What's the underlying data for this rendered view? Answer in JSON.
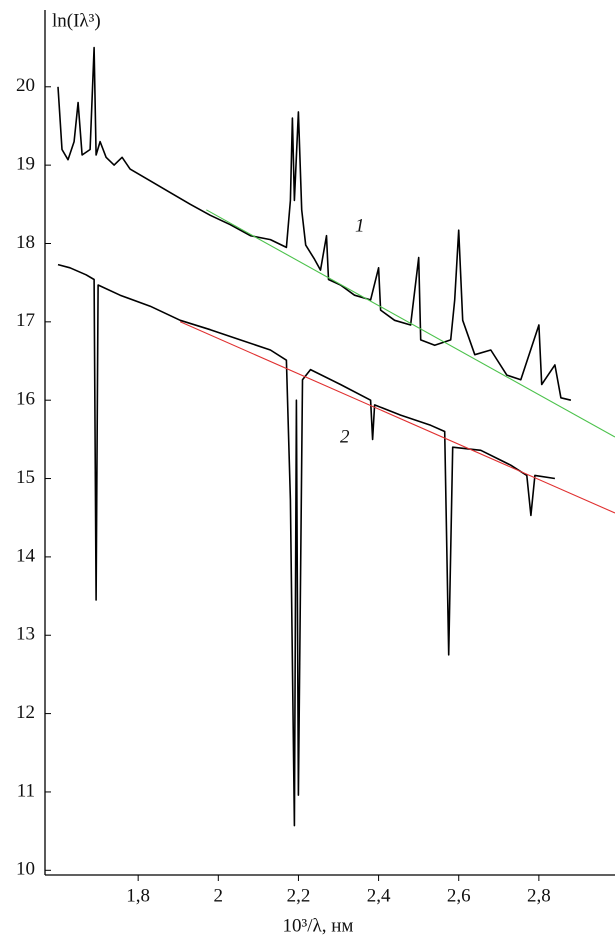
{
  "chart_data": {
    "type": "line",
    "y_label": "ln(Iλ³)",
    "x_label": "10³/λ, нм",
    "annotations": [
      "1",
      "2"
    ],
    "xlim": [
      1.5675,
      2.99
    ],
    "ylim": [
      9.94,
      20.98
    ],
    "xticks": [
      {
        "value": 1.8,
        "label": "1,8"
      },
      2,
      {
        "value": 2.2,
        "label": "2,2"
      },
      {
        "value": 2.4,
        "label": "2,4"
      },
      {
        "value": 2.6,
        "label": "2,6"
      },
      {
        "value": 2.8,
        "label": "2,8"
      }
    ],
    "yticks": [
      10,
      11,
      12,
      13,
      14,
      15,
      16,
      17,
      18,
      19,
      20
    ],
    "series": [
      {
        "color": "#000000",
        "x": [
          1.6,
          1.61,
          1.625,
          1.64,
          1.65,
          1.66,
          1.68,
          1.69,
          1.695,
          1.705,
          1.72,
          1.74,
          1.76,
          1.78,
          1.83,
          1.88,
          1.93,
          1.98,
          2.03,
          2.08,
          2.13,
          2.17,
          2.18,
          2.185,
          2.19,
          2.2,
          2.208,
          2.218,
          2.24,
          2.255,
          2.27,
          2.275,
          2.305,
          2.34,
          2.38,
          2.4,
          2.405,
          2.44,
          2.48,
          2.5,
          2.505,
          2.54,
          2.58,
          2.59,
          2.6,
          2.61,
          2.64,
          2.68,
          2.72,
          2.755,
          2.8,
          2.807,
          2.84,
          2.855,
          2.88
        ],
        "values": [
          20.0,
          19.2,
          19.07,
          19.3,
          19.8,
          19.13,
          19.2,
          20.5,
          19.13,
          19.3,
          19.1,
          19.0,
          19.1,
          18.95,
          18.8,
          18.65,
          18.5,
          18.36,
          18.24,
          18.1,
          18.05,
          17.95,
          18.55,
          19.6,
          18.55,
          19.68,
          18.43,
          17.98,
          17.8,
          17.66,
          18.1,
          17.54,
          17.47,
          17.34,
          17.28,
          17.69,
          17.15,
          17.02,
          16.96,
          17.82,
          16.77,
          16.7,
          16.77,
          17.28,
          18.17,
          17.02,
          16.58,
          16.64,
          16.32,
          16.26,
          16.96,
          16.2,
          16.45,
          16.03,
          16.0
        ]
      },
      {
        "color": "#000000",
        "x": [
          1.6,
          1.63,
          1.67,
          1.69,
          1.695,
          1.7,
          1.755,
          1.83,
          1.905,
          1.98,
          2.055,
          2.13,
          2.17,
          2.18,
          2.19,
          2.195,
          2.2,
          2.21,
          2.23,
          2.305,
          2.38,
          2.385,
          2.39,
          2.455,
          2.53,
          2.565,
          2.575,
          2.585,
          2.655,
          2.73,
          2.77,
          2.78,
          2.79,
          2.84
        ],
        "values": [
          17.73,
          17.69,
          17.6,
          17.54,
          13.45,
          17.47,
          17.34,
          17.2,
          17.02,
          16.9,
          16.77,
          16.64,
          16.51,
          14.73,
          10.57,
          16.0,
          10.96,
          16.26,
          16.39,
          16.2,
          16.0,
          15.5,
          15.94,
          15.81,
          15.68,
          15.6,
          12.75,
          15.4,
          15.36,
          15.17,
          15.04,
          14.53,
          15.04,
          15.0
        ]
      },
      {
        "color": "#4cc24c",
        "x": [
          1.97,
          2.99
        ],
        "values": [
          18.43,
          15.53
        ]
      },
      {
        "color": "#e03030",
        "x": [
          1.905,
          2.99
        ],
        "values": [
          17.0,
          14.56
        ]
      }
    ]
  }
}
